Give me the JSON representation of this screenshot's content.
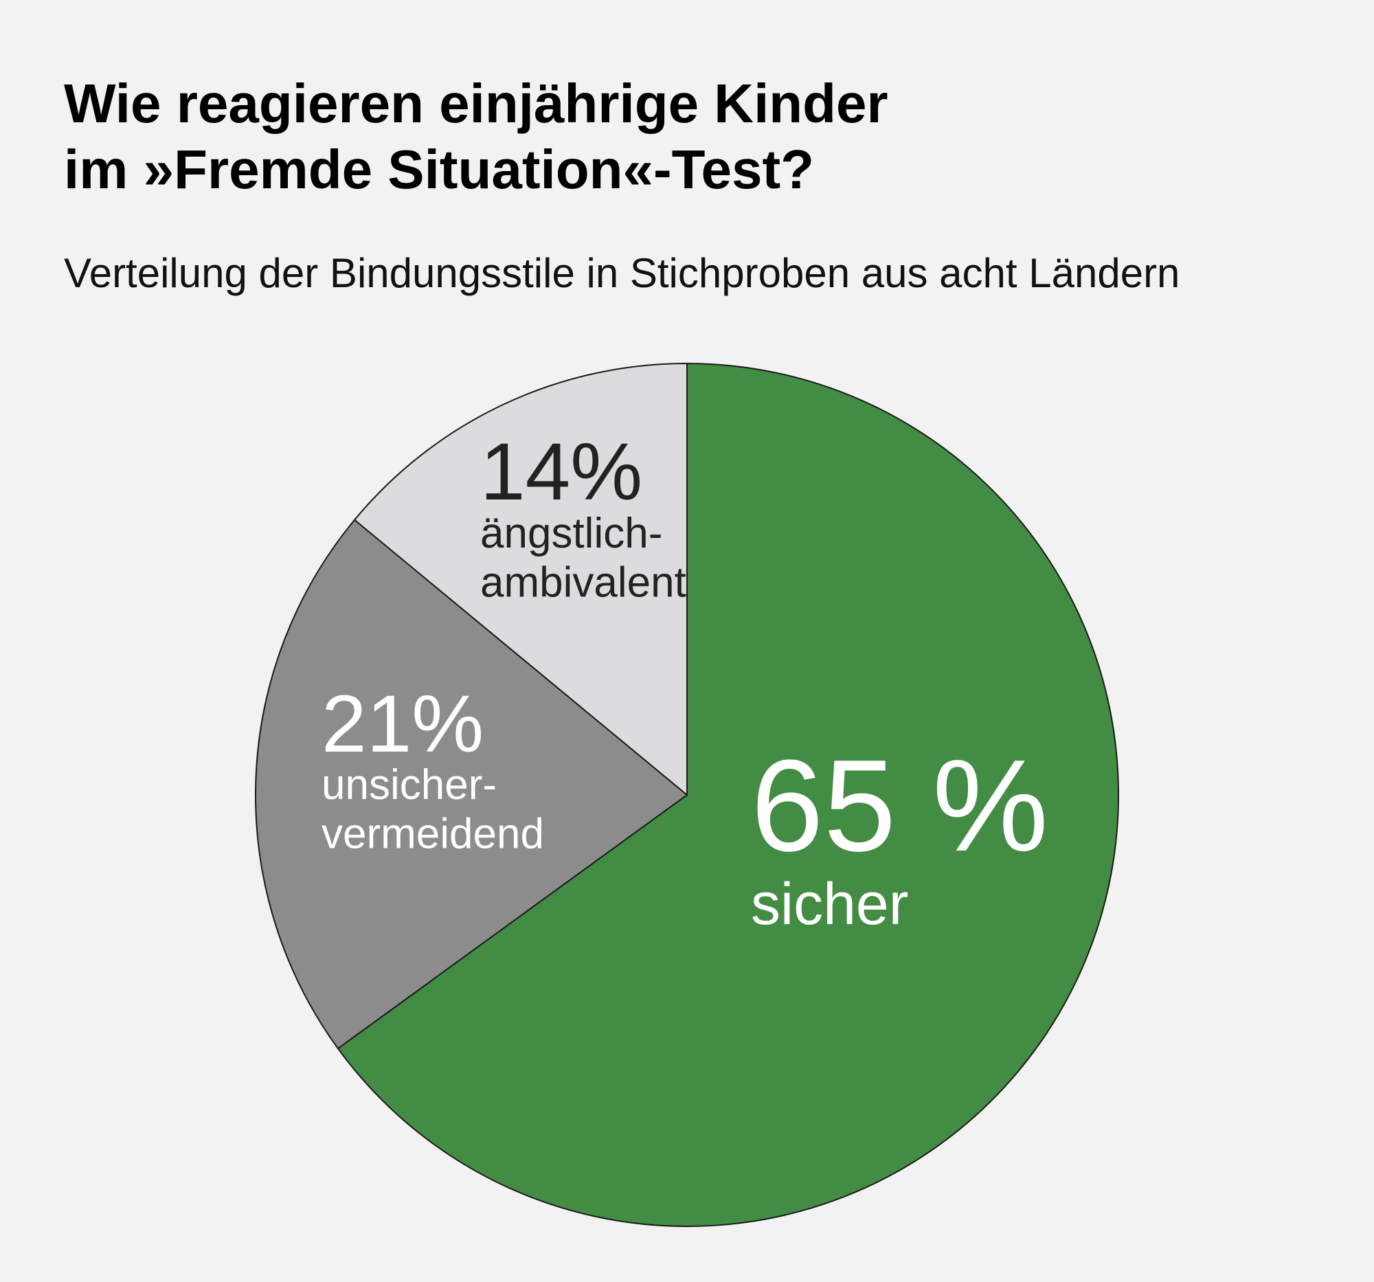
{
  "chart_data": {
    "type": "pie",
    "title": "Wie reagieren einjährige Kinder\nim »Fremde Situation«-Test?",
    "subtitle": "Verteilung der Bindungsstile in Stichproben aus acht Ländern",
    "categories": [
      "sicher",
      "unsicher-\nvermeidend",
      "ängstlich-\nambivalent"
    ],
    "values": [
      65,
      21,
      14
    ],
    "value_labels": [
      "65 %",
      "21%",
      "14%"
    ],
    "colors": [
      "#438c44",
      "#8c8c8c",
      "#dcdcde"
    ]
  }
}
